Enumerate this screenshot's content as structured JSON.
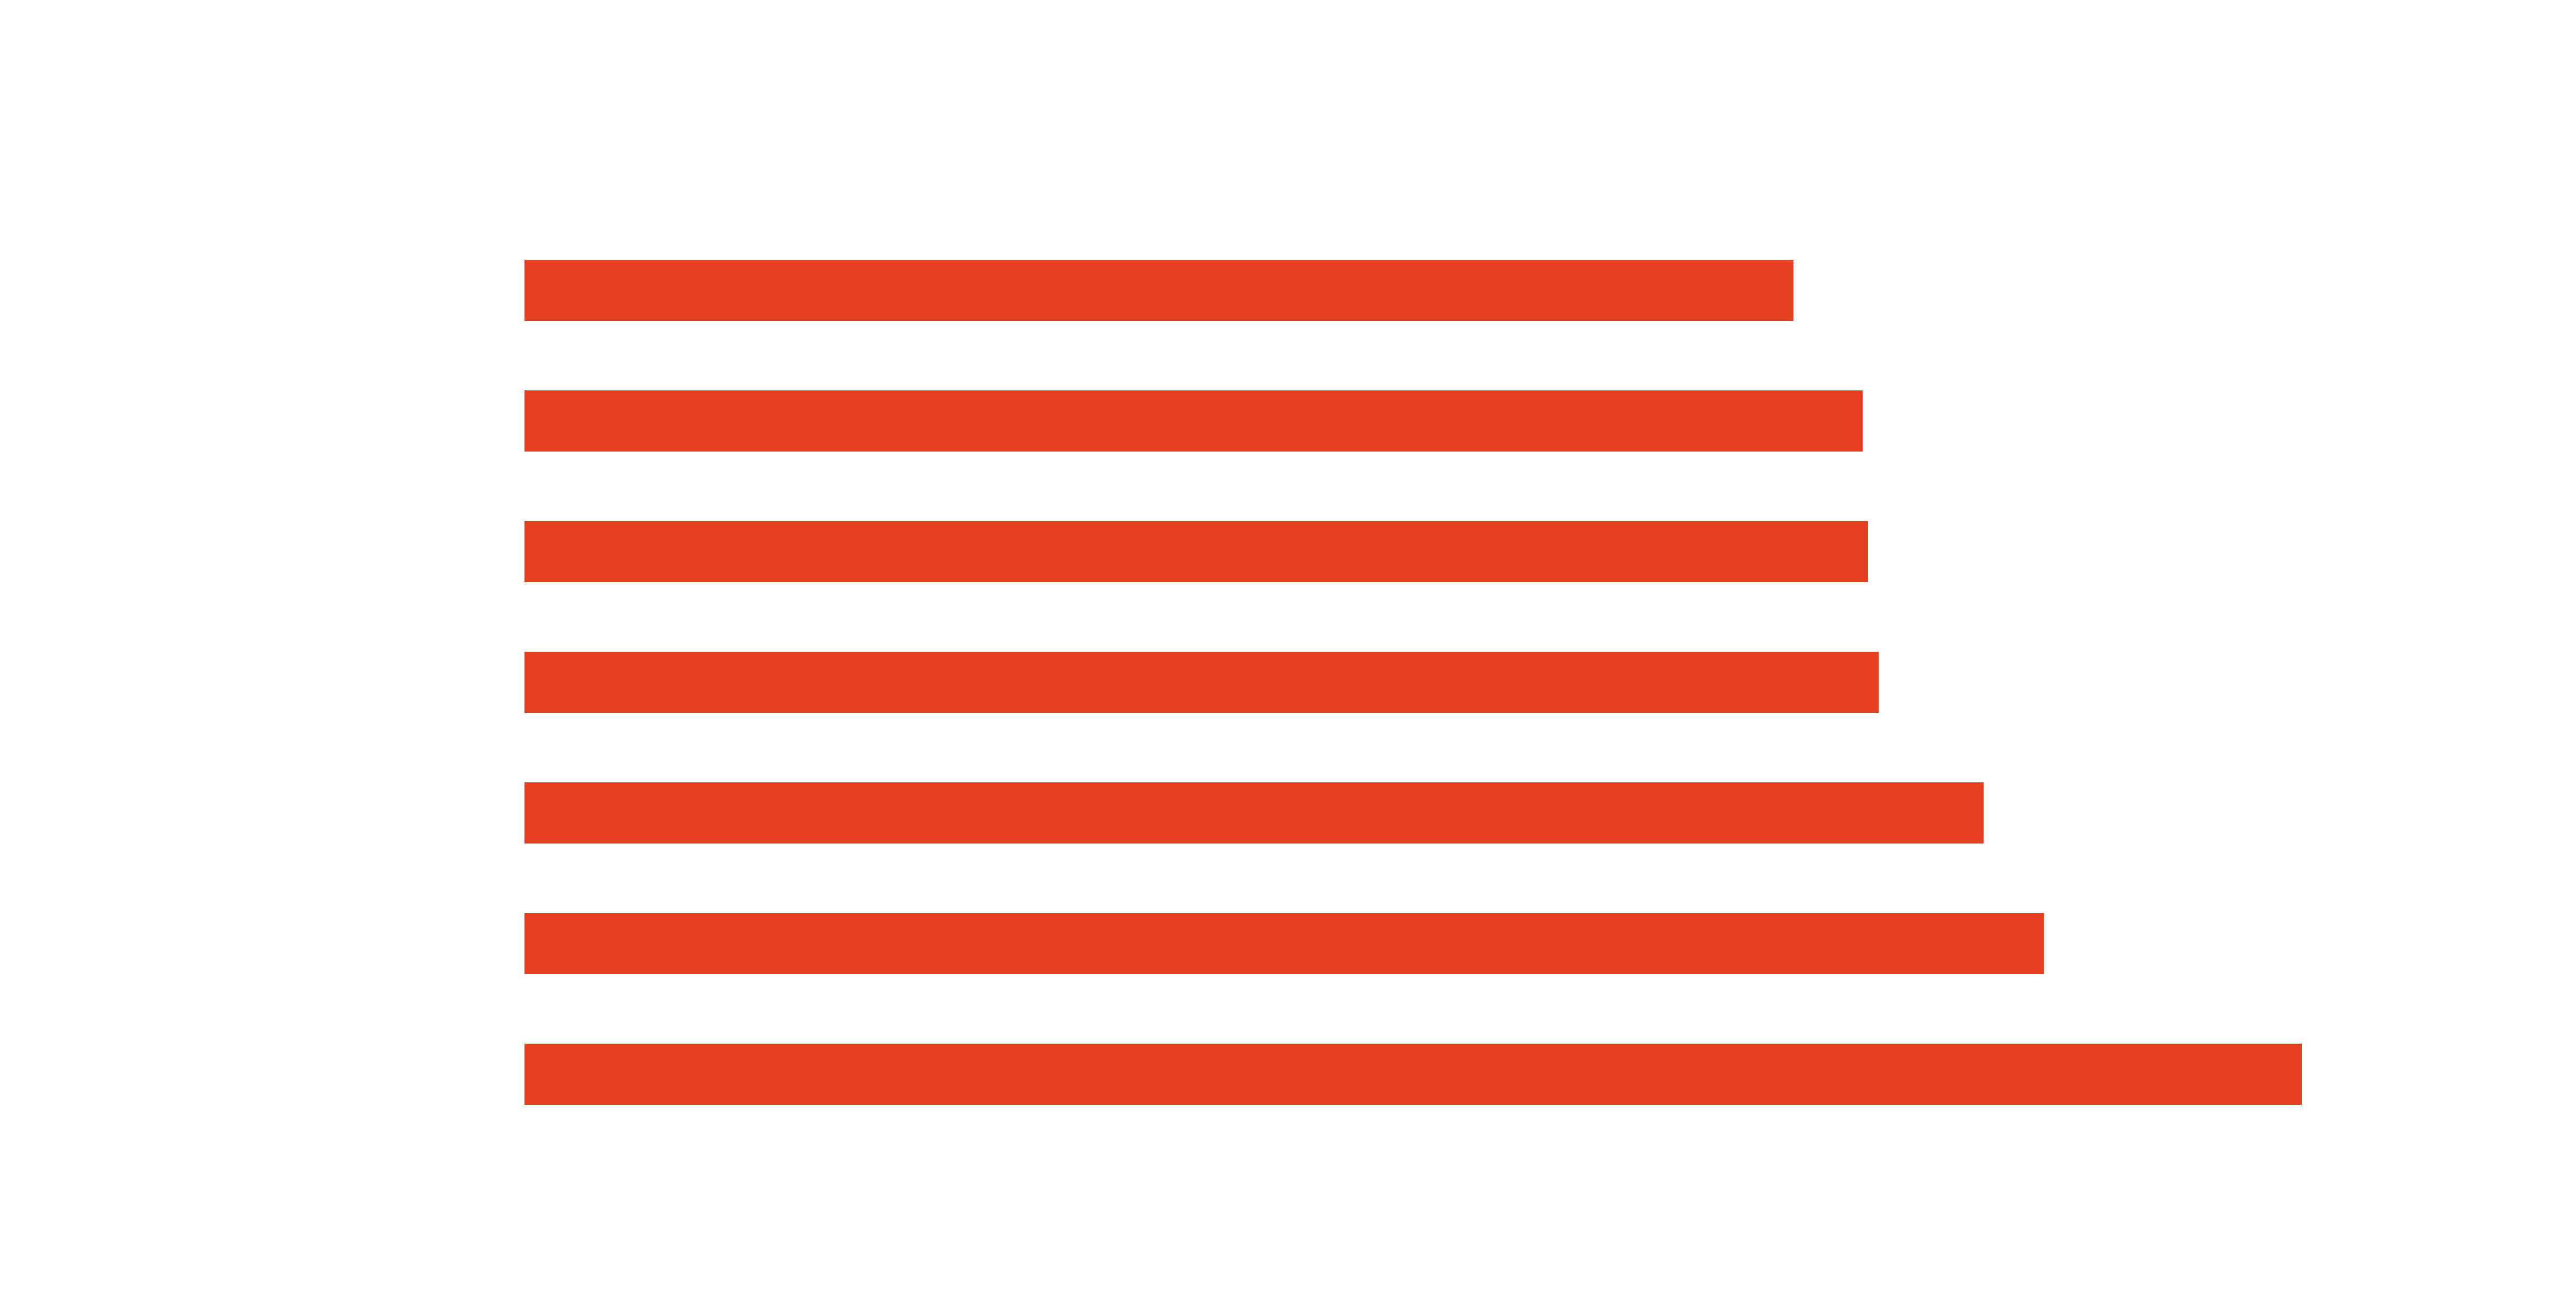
{
  "chart_data": {
    "type": "bar",
    "orientation": "horizontal",
    "bar_color": "#E53E22",
    "axis_visible": false,
    "grid": false,
    "xlim": [
      0,
      1
    ],
    "values": [
      0.714,
      0.753,
      0.756,
      0.762,
      0.821,
      0.855,
      1.0
    ]
  }
}
